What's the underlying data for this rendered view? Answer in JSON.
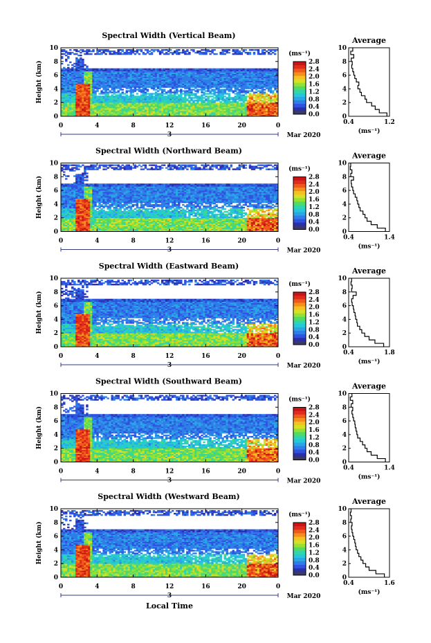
{
  "figure": {
    "x_axis_title": "Local Time",
    "date_label": "Mar 2020",
    "day_label": "3",
    "units_label": "(ms⁻¹)",
    "avg_title": "Average",
    "avg_xlabel": "(ms⁻¹)"
  },
  "colors": {
    "scale": [
      "#3a3a66",
      "#2b2fa8",
      "#2f52e0",
      "#2f7de8",
      "#2aa6e6",
      "#25c8d8",
      "#30d6a8",
      "#52db62",
      "#97e034",
      "#d8e024",
      "#f5c021",
      "#f58e1d",
      "#ef5a1a",
      "#e12b1c",
      "#c81414"
    ]
  },
  "chart_data": [
    {
      "type": "heatmap",
      "title": "Spectral Width (Vertical Beam)",
      "ylabel": "Height (km)",
      "ylim": [
        0,
        10
      ],
      "yticks": [
        "0",
        "2",
        "4",
        "6",
        "8",
        "10"
      ],
      "xlim": [
        0,
        24
      ],
      "xticks": [
        "0",
        "4",
        "8",
        "12",
        "16",
        "20",
        "0"
      ],
      "colorbar": {
        "ticks": [
          "0.0",
          "0.4",
          "0.8",
          "1.2",
          "1.6",
          "2.0",
          "2.4",
          "2.8"
        ],
        "range": [
          0,
          2.8
        ]
      },
      "average_profile": {
        "xlim": [
          0.4,
          1.2
        ],
        "xticks": [
          "0.4",
          "1.2"
        ],
        "height": [
          0,
          0.5,
          1,
          1.5,
          2,
          2.5,
          3,
          3.5,
          4,
          4.5,
          5,
          5.5,
          6,
          6.5,
          7,
          7.5,
          8,
          8.5,
          9,
          9.5
        ],
        "value": [
          1.15,
          1.0,
          0.92,
          0.85,
          0.75,
          0.72,
          0.65,
          0.62,
          0.58,
          0.6,
          0.55,
          0.52,
          0.5,
          0.48,
          0.46,
          0.47,
          0.45,
          0.5,
          0.44,
          0.48
        ]
      }
    },
    {
      "type": "heatmap",
      "title": "Spectral Width (Northward Beam)",
      "ylabel": "Height (km)",
      "ylim": [
        0,
        10
      ],
      "yticks": [
        "0",
        "2",
        "4",
        "6",
        "8",
        "10"
      ],
      "xlim": [
        0,
        24
      ],
      "xticks": [
        "0",
        "4",
        "8",
        "12",
        "16",
        "20",
        "0"
      ],
      "colorbar": {
        "ticks": [
          "0.0",
          "0.4",
          "0.8",
          "1.2",
          "1.6",
          "2.0",
          "2.4",
          "2.8"
        ],
        "range": [
          0,
          2.8
        ]
      },
      "average_profile": {
        "xlim": [
          0.4,
          1.4
        ],
        "xticks": [
          "0.4",
          "1.4"
        ],
        "height": [
          0,
          0.5,
          1,
          1.5,
          2,
          2.5,
          3,
          3.5,
          4,
          4.5,
          5,
          5.5,
          6,
          6.5,
          7,
          7.5,
          8,
          8.5,
          9,
          9.5
        ],
        "value": [
          1.3,
          1.1,
          0.95,
          0.85,
          0.8,
          0.75,
          0.68,
          0.65,
          0.62,
          0.6,
          0.56,
          0.52,
          0.5,
          0.47,
          0.46,
          0.52,
          0.45,
          0.48,
          0.44,
          0.45
        ]
      }
    },
    {
      "type": "heatmap",
      "title": "Spectral Width (Eastward Beam)",
      "ylabel": "Height (km)",
      "ylim": [
        0,
        10
      ],
      "yticks": [
        "0",
        "2",
        "4",
        "6",
        "8",
        "10"
      ],
      "xlim": [
        0,
        24
      ],
      "xticks": [
        "0",
        "4",
        "8",
        "12",
        "16",
        "20",
        "0"
      ],
      "colorbar": {
        "ticks": [
          "0.0",
          "0.4",
          "0.8",
          "1.2",
          "1.6",
          "2.0",
          "2.4",
          "2.8"
        ],
        "range": [
          0,
          2.8
        ]
      },
      "average_profile": {
        "xlim": [
          0.4,
          1.8
        ],
        "xticks": [
          "0.4",
          "1.8"
        ],
        "height": [
          0,
          0.5,
          1,
          1.5,
          2,
          2.5,
          3,
          3.5,
          4,
          4.5,
          5,
          5.5,
          6,
          6.5,
          7,
          7.5,
          8,
          8.5,
          9,
          9.5
        ],
        "value": [
          1.6,
          1.3,
          1.1,
          0.95,
          0.85,
          0.78,
          0.7,
          0.68,
          0.64,
          0.62,
          0.58,
          0.56,
          0.52,
          0.5,
          0.55,
          0.66,
          0.5,
          0.52,
          0.48,
          0.5
        ]
      }
    },
    {
      "type": "heatmap",
      "title": "Spectral Width (Southward Beam)",
      "ylabel": "Height (km)",
      "ylim": [
        0,
        10
      ],
      "yticks": [
        "0",
        "2",
        "4",
        "6",
        "8",
        "10"
      ],
      "xlim": [
        0,
        24
      ],
      "xticks": [
        "0",
        "4",
        "8",
        "12",
        "16",
        "20",
        "0"
      ],
      "colorbar": {
        "ticks": [
          "0.0",
          "0.4",
          "0.8",
          "1.2",
          "1.6",
          "2.0",
          "2.4",
          "2.8"
        ],
        "range": [
          0,
          2.8
        ]
      },
      "average_profile": {
        "xlim": [
          0.4,
          1.4
        ],
        "xticks": [
          "0.4",
          "1.4"
        ],
        "height": [
          0,
          0.5,
          1,
          1.5,
          2,
          2.5,
          3,
          3.5,
          4,
          4.5,
          5,
          5.5,
          6,
          6.5,
          7,
          7.5,
          8,
          8.5,
          9,
          9.5
        ],
        "value": [
          1.3,
          1.1,
          0.95,
          0.85,
          0.8,
          0.74,
          0.68,
          0.62,
          0.6,
          0.58,
          0.56,
          0.55,
          0.52,
          0.5,
          0.48,
          0.5,
          0.46,
          0.5,
          0.44,
          0.48
        ]
      }
    },
    {
      "type": "heatmap",
      "title": "Spectral Width (Westward Beam)",
      "ylabel": "Height (km)",
      "ylim": [
        0,
        10
      ],
      "yticks": [
        "0",
        "2",
        "4",
        "6",
        "8",
        "10"
      ],
      "xlim": [
        0,
        24
      ],
      "xticks": [
        "0",
        "4",
        "8",
        "12",
        "16",
        "20",
        "0"
      ],
      "colorbar": {
        "ticks": [
          "0.0",
          "0.4",
          "0.8",
          "1.2",
          "1.6",
          "2.0",
          "2.4",
          "2.8"
        ],
        "range": [
          0,
          2.8
        ]
      },
      "average_profile": {
        "xlim": [
          0.4,
          1.6
        ],
        "xticks": [
          "0.4",
          "1.6"
        ],
        "height": [
          0,
          0.5,
          1,
          1.5,
          2,
          2.5,
          3,
          3.5,
          4,
          4.5,
          5,
          5.5,
          6,
          6.5,
          7,
          7.5,
          8,
          8.5,
          9,
          9.5
        ],
        "value": [
          1.45,
          1.2,
          1.0,
          0.9,
          0.82,
          0.76,
          0.7,
          0.66,
          0.62,
          0.6,
          0.58,
          0.55,
          0.52,
          0.5,
          0.48,
          0.5,
          0.46,
          0.48,
          0.45,
          0.47
        ]
      }
    }
  ]
}
